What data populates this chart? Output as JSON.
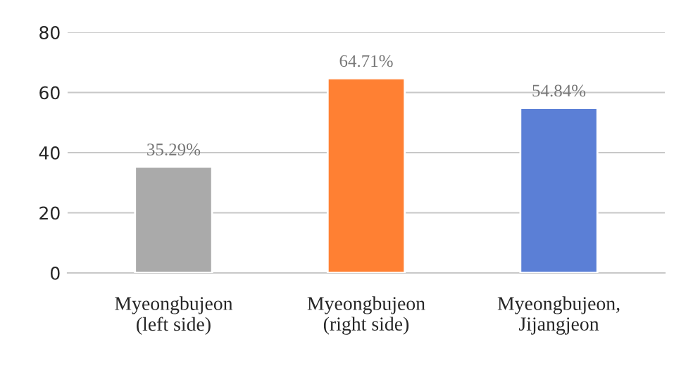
{
  "chart_data": {
    "type": "bar",
    "categories": [
      "Myeongbujeon\n(left side)",
      "Myeongbujeon\n(right side)",
      "Myeongbujeon,\nJijangjeon"
    ],
    "values": [
      35.29,
      64.71,
      54.84
    ],
    "colors": [
      "#aaaaaa",
      "#ff8033",
      "#5b7fd6"
    ],
    "value_labels": [
      "35.29%",
      "64.71%",
      "54.84%"
    ],
    "ylim": [
      0,
      80
    ],
    "yticks": [
      0,
      20,
      40,
      60,
      80
    ],
    "grid": "y"
  }
}
